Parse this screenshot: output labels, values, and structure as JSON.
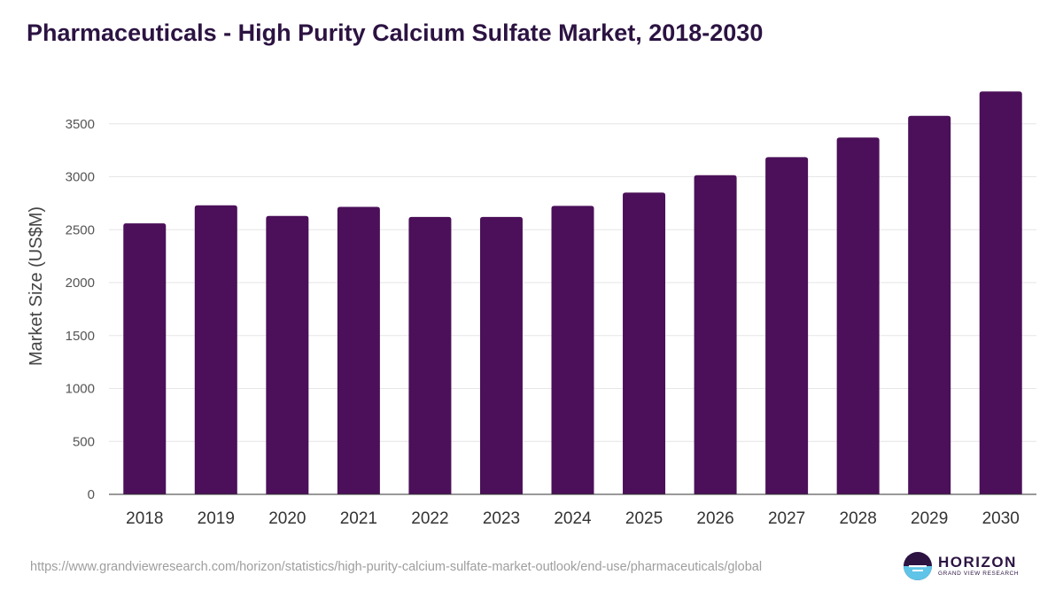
{
  "title": "Pharmaceuticals - High Purity Calcium Sulfate Market, 2018-2030",
  "source_url": "https://www.grandviewresearch.com/horizon/statistics/high-purity-calcium-sulfate-market-outlook/end-use/pharmaceuticals/global",
  "logo": {
    "name": "HORIZON",
    "sub": "GRAND VIEW RESEARCH",
    "icon": "horizon-logo-icon"
  },
  "colors": {
    "bar": "#4b1059",
    "grid": "#e6e6e6",
    "axis": "#333333",
    "title": "#2c1342",
    "logo_water": "#5fc4e8"
  },
  "chart_data": {
    "type": "bar",
    "title": "Pharmaceuticals - High Purity Calcium Sulfate Market, 2018-2030",
    "xlabel": "",
    "ylabel": "Market Size (US$M)",
    "categories": [
      "2018",
      "2019",
      "2020",
      "2021",
      "2022",
      "2023",
      "2024",
      "2025",
      "2026",
      "2027",
      "2028",
      "2029",
      "2030"
    ],
    "values": [
      2560,
      2730,
      2630,
      2715,
      2620,
      2620,
      2725,
      2850,
      3015,
      3185,
      3370,
      3575,
      3805
    ],
    "yticks": [
      0,
      500,
      1000,
      1500,
      2000,
      2500,
      3000,
      3500
    ],
    "ylim": [
      0,
      4000
    ],
    "grid": true,
    "legend": "none"
  }
}
